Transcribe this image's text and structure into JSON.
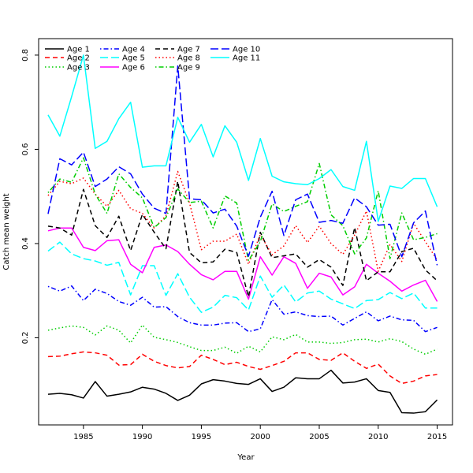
{
  "chart_data": {
    "type": "line",
    "xlabel": "Year",
    "ylabel": "Catch mean weight",
    "xlim": [
      1981.2,
      2016.3
    ],
    "ylim": [
      0.015,
      0.835
    ],
    "xticks": [
      "1985",
      "1990",
      "1995",
      "2000",
      "2005",
      "2010",
      "2015"
    ],
    "yticks": [
      "0.2",
      "0.4",
      "0.6",
      "0.8"
    ],
    "grid": false,
    "legend_position": "top-left",
    "x": [
      1982,
      1983,
      1984,
      1985,
      1986,
      1987,
      1988,
      1989,
      1990,
      1991,
      1992,
      1993,
      1994,
      1995,
      1996,
      1997,
      1998,
      1999,
      2000,
      2001,
      2002,
      2003,
      2004,
      2005,
      2006,
      2007,
      2008,
      2009,
      2010,
      2011,
      2012,
      2013,
      2014,
      2015
    ],
    "series": [
      {
        "name": "Age 1",
        "color": "#000000",
        "dash": "solid",
        "values": [
          0.08,
          0.082,
          0.079,
          0.072,
          0.107,
          0.076,
          0.08,
          0.085,
          0.095,
          0.091,
          0.082,
          0.067,
          0.078,
          0.102,
          0.111,
          0.108,
          0.103,
          0.101,
          0.113,
          0.086,
          0.095,
          0.115,
          0.113,
          0.113,
          0.131,
          0.104,
          0.106,
          0.113,
          0.088,
          0.084,
          0.041,
          0.04,
          0.043,
          0.068
        ]
      },
      {
        "name": "Age 2",
        "color": "#ff0000",
        "dash": "dashed",
        "values": [
          0.16,
          0.161,
          0.166,
          0.17,
          0.168,
          0.163,
          0.142,
          0.143,
          0.165,
          0.15,
          0.141,
          0.136,
          0.139,
          0.163,
          0.154,
          0.143,
          0.148,
          0.139,
          0.133,
          0.141,
          0.15,
          0.168,
          0.168,
          0.154,
          0.152,
          0.168,
          0.15,
          0.135,
          0.144,
          0.119,
          0.103,
          0.108,
          0.119,
          0.122
        ]
      },
      {
        "name": "Age 3",
        "color": "#00cd00",
        "dash": "dotted",
        "values": [
          0.216,
          0.221,
          0.225,
          0.222,
          0.206,
          0.225,
          0.216,
          0.189,
          0.227,
          0.201,
          0.196,
          0.19,
          0.181,
          0.173,
          0.173,
          0.18,
          0.167,
          0.182,
          0.17,
          0.202,
          0.196,
          0.207,
          0.191,
          0.191,
          0.188,
          0.19,
          0.196,
          0.197,
          0.191,
          0.198,
          0.192,
          0.176,
          0.165,
          0.176
        ]
      },
      {
        "name": "Age 4",
        "color": "#0000ff",
        "dash": "dotdash",
        "values": [
          0.309,
          0.299,
          0.31,
          0.279,
          0.303,
          0.294,
          0.277,
          0.269,
          0.286,
          0.265,
          0.266,
          0.245,
          0.232,
          0.227,
          0.227,
          0.231,
          0.232,
          0.213,
          0.219,
          0.281,
          0.25,
          0.255,
          0.247,
          0.245,
          0.246,
          0.227,
          0.241,
          0.255,
          0.236,
          0.246,
          0.238,
          0.237,
          0.213,
          0.222
        ]
      },
      {
        "name": "Age 5",
        "color": "#00ffff",
        "dash": "longdash",
        "values": [
          0.384,
          0.403,
          0.378,
          0.368,
          0.363,
          0.354,
          0.36,
          0.291,
          0.353,
          0.353,
          0.29,
          0.336,
          0.286,
          0.254,
          0.265,
          0.29,
          0.285,
          0.259,
          0.331,
          0.286,
          0.312,
          0.276,
          0.295,
          0.299,
          0.282,
          0.272,
          0.262,
          0.279,
          0.281,
          0.296,
          0.283,
          0.295,
          0.263,
          0.263
        ]
      },
      {
        "name": "Age 6",
        "color": "#ff00ff",
        "dash": "solid",
        "values": [
          0.427,
          0.433,
          0.433,
          0.392,
          0.385,
          0.406,
          0.408,
          0.356,
          0.338,
          0.392,
          0.397,
          0.383,
          0.356,
          0.334,
          0.323,
          0.341,
          0.341,
          0.282,
          0.372,
          0.333,
          0.372,
          0.358,
          0.305,
          0.337,
          0.329,
          0.291,
          0.308,
          0.356,
          0.337,
          0.32,
          0.299,
          0.312,
          0.322,
          0.277
        ]
      },
      {
        "name": "Age 7",
        "color": "#000000",
        "dash": "dashed",
        "values": [
          0.437,
          0.433,
          0.418,
          0.515,
          0.438,
          0.413,
          0.458,
          0.385,
          0.462,
          0.424,
          0.389,
          0.532,
          0.381,
          0.359,
          0.361,
          0.388,
          0.381,
          0.287,
          0.424,
          0.37,
          0.374,
          0.378,
          0.35,
          0.366,
          0.35,
          0.311,
          0.434,
          0.321,
          0.34,
          0.34,
          0.383,
          0.39,
          0.344,
          0.321
        ]
      },
      {
        "name": "Age 8",
        "color": "#ff0000",
        "dash": "dotted",
        "values": [
          0.502,
          0.532,
          0.527,
          0.539,
          0.505,
          0.479,
          0.513,
          0.474,
          0.464,
          0.433,
          0.459,
          0.553,
          0.486,
          0.387,
          0.405,
          0.405,
          0.42,
          0.356,
          0.419,
          0.376,
          0.395,
          0.438,
          0.402,
          0.437,
          0.4,
          0.377,
          0.418,
          0.469,
          0.341,
          0.398,
          0.362,
          0.443,
          0.404,
          0.365
        ]
      },
      {
        "name": "Age 9",
        "color": "#00cd00",
        "dash": "dotdash",
        "values": [
          0.508,
          0.537,
          0.53,
          0.582,
          0.505,
          0.464,
          0.548,
          0.519,
          0.497,
          0.434,
          0.455,
          0.516,
          0.487,
          0.49,
          0.433,
          0.501,
          0.486,
          0.364,
          0.404,
          0.484,
          0.468,
          0.479,
          0.489,
          0.57,
          0.461,
          0.438,
          0.378,
          0.412,
          0.512,
          0.368,
          0.465,
          0.408,
          0.413,
          0.421
        ]
      },
      {
        "name": "Age 10",
        "color": "#0000ff",
        "dash": "longdash",
        "values": [
          0.463,
          0.58,
          0.567,
          0.594,
          0.521,
          0.537,
          0.563,
          0.548,
          0.505,
          0.475,
          0.464,
          0.777,
          0.495,
          0.493,
          0.465,
          0.473,
          0.437,
          0.373,
          0.456,
          0.511,
          0.417,
          0.493,
          0.505,
          0.445,
          0.449,
          0.443,
          0.497,
          0.478,
          0.439,
          0.441,
          0.372,
          0.444,
          0.469,
          0.354
        ]
      },
      {
        "name": "Age 11",
        "color": "#00ffff",
        "dash": "solid",
        "values": [
          0.673,
          0.628,
          0.712,
          0.8,
          0.602,
          0.617,
          0.665,
          0.7,
          0.562,
          0.565,
          0.565,
          0.668,
          0.615,
          0.653,
          0.584,
          0.65,
          0.615,
          0.534,
          0.623,
          0.543,
          0.531,
          0.527,
          0.525,
          0.538,
          0.557,
          0.521,
          0.513,
          0.617,
          0.447,
          0.522,
          0.517,
          0.538,
          0.538,
          0.478
        ]
      }
    ]
  }
}
